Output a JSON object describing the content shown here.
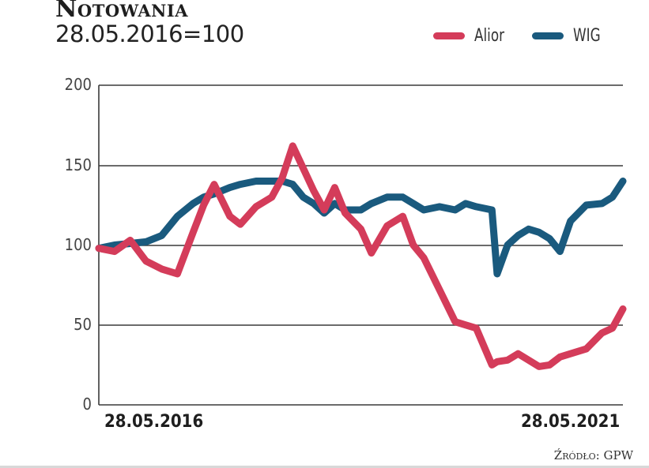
{
  "header": {
    "title": "Notowania",
    "subtitle": "28.05.2016=100"
  },
  "legend": [
    {
      "label": "Alior",
      "color": "#d43c5a"
    },
    {
      "label": "WIG",
      "color": "#1a5a7e"
    }
  ],
  "axes": {
    "y_ticks": [
      "200",
      "150",
      "100",
      "50",
      "0"
    ],
    "x_start": "28.05.2016",
    "x_end": "28.05.2021"
  },
  "source": "Źródło: GPW",
  "chart_data": {
    "type": "line",
    "title": "Notowania",
    "subtitle": "28.05.2016=100",
    "xlabel": "",
    "ylabel": "",
    "ylim": [
      0,
      200
    ],
    "yticks": [
      0,
      50,
      100,
      150,
      200
    ],
    "x_range": [
      "28.05.2016",
      "28.05.2021"
    ],
    "grid": "horizontal",
    "legend_position": "top-right",
    "x": [
      0,
      0.03,
      0.06,
      0.09,
      0.12,
      0.15,
      0.18,
      0.2,
      0.22,
      0.25,
      0.27,
      0.3,
      0.33,
      0.35,
      0.37,
      0.39,
      0.41,
      0.43,
      0.45,
      0.47,
      0.5,
      0.52,
      0.55,
      0.58,
      0.6,
      0.62,
      0.65,
      0.68,
      0.7,
      0.72,
      0.75,
      0.76,
      0.78,
      0.8,
      0.82,
      0.84,
      0.86,
      0.88,
      0.9,
      0.93,
      0.96,
      0.98,
      1.0
    ],
    "series": [
      {
        "name": "Alior",
        "color": "#d43c5a",
        "values": [
          98,
          96,
          103,
          90,
          85,
          82,
          108,
          125,
          138,
          118,
          113,
          124,
          130,
          142,
          162,
          148,
          134,
          122,
          136,
          120,
          110,
          95,
          112,
          118,
          100,
          92,
          72,
          52,
          50,
          48,
          25,
          27,
          28,
          32,
          28,
          24,
          25,
          30,
          32,
          35,
          45,
          48,
          60
        ]
      },
      {
        "name": "WIG",
        "color": "#1a5a7e",
        "values": [
          98,
          100,
          101,
          102,
          106,
          118,
          126,
          130,
          132,
          136,
          138,
          140,
          140,
          140,
          138,
          130,
          126,
          120,
          126,
          122,
          122,
          126,
          130,
          130,
          126,
          122,
          124,
          122,
          126,
          124,
          122,
          82,
          100,
          106,
          110,
          108,
          104,
          96,
          115,
          125,
          126,
          130,
          140
        ]
      }
    ]
  }
}
